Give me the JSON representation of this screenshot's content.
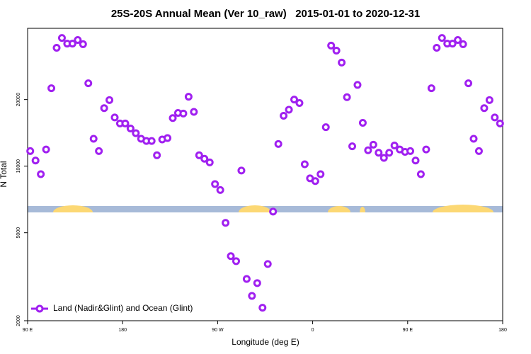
{
  "chart_data": {
    "type": "scatter",
    "title": "25S-20S Annual Mean (Ver 10_raw)   2015-01-01 to 2020-12-31",
    "x_label": "Longitude (deg E)",
    "y_label": "N Total",
    "xlim": [
      90,
      540
    ],
    "ylim": [
      2000,
      42000
    ],
    "ylog": true,
    "legend": "bottom-left",
    "xticks": [
      {
        "value": 90,
        "label": "90 E"
      },
      180,
      {
        "value": 270,
        "label": "90 W"
      },
      {
        "value": 360,
        "label": "0"
      },
      {
        "value": 450,
        "label": "90 E"
      },
      {
        "value": 540,
        "label": "180"
      }
    ],
    "yticks": [
      2000,
      5000,
      10000,
      20000
    ],
    "series": [
      {
        "name": "Land (Nadir&Glint) and Ocean (Glint)",
        "color": "#a020f0",
        "x": [
          92.5,
          97.5,
          102.5,
          107.5,
          112.5,
          117.5,
          122.5,
          127.5,
          132.5,
          137.5,
          142.5,
          147.5,
          152.5,
          157.5,
          162.5,
          167.5,
          172.5,
          177.5,
          182.5,
          187.5,
          192.5,
          197.5,
          202.5,
          207.5,
          212.5,
          217.5,
          222.5,
          227.5,
          232.5,
          237.5,
          242.5,
          247.5,
          252.5,
          257.5,
          262.5,
          267.5,
          272.5,
          277.5,
          282.5,
          287.5,
          292.5,
          297.5,
          302.5,
          307.5,
          312.5,
          317.5,
          322.5,
          327.5,
          332.5,
          337.5,
          342.5,
          347.5,
          352.5,
          357.5,
          362.5,
          367.5,
          372.5,
          377.5,
          382.5,
          387.5,
          392.5,
          397.5,
          402.5,
          407.5,
          412.5,
          417.5,
          422.5,
          427.5,
          432.5,
          437.5,
          442.5,
          447.5,
          452.5,
          457.5,
          462.5,
          467.5,
          472.5,
          477.5,
          482.5,
          487.5,
          492.5,
          497.5,
          502.5,
          507.5,
          512.5,
          517.5,
          522.5,
          527.5,
          532.5,
          537.5
        ],
        "values": [
          11700,
          10600,
          9200,
          11900,
          22500,
          34300,
          38000,
          35800,
          35800,
          37200,
          35600,
          23700,
          13300,
          11700,
          18300,
          19900,
          16600,
          15600,
          15600,
          14800,
          14100,
          13300,
          13000,
          13000,
          11200,
          13200,
          13400,
          16500,
          17400,
          17300,
          20600,
          17600,
          11200,
          10800,
          10400,
          8300,
          7800,
          5540,
          3920,
          3720,
          9550,
          3090,
          2590,
          2960,
          2290,
          3610,
          6230,
          12600,
          16900,
          18000,
          20000,
          19300,
          10200,
          8810,
          8560,
          9200,
          15000,
          35100,
          33300,
          29400,
          20500,
          12300,
          23300,
          15700,
          11800,
          12500,
          11500,
          10900,
          11500,
          12400,
          11900,
          11600,
          11700,
          10600,
          9200,
          11900,
          22500,
          34300,
          38000,
          35800,
          35800,
          37200,
          35600,
          23700,
          13300,
          11700,
          18300,
          19900,
          16600,
          15600
        ]
      }
    ]
  }
}
